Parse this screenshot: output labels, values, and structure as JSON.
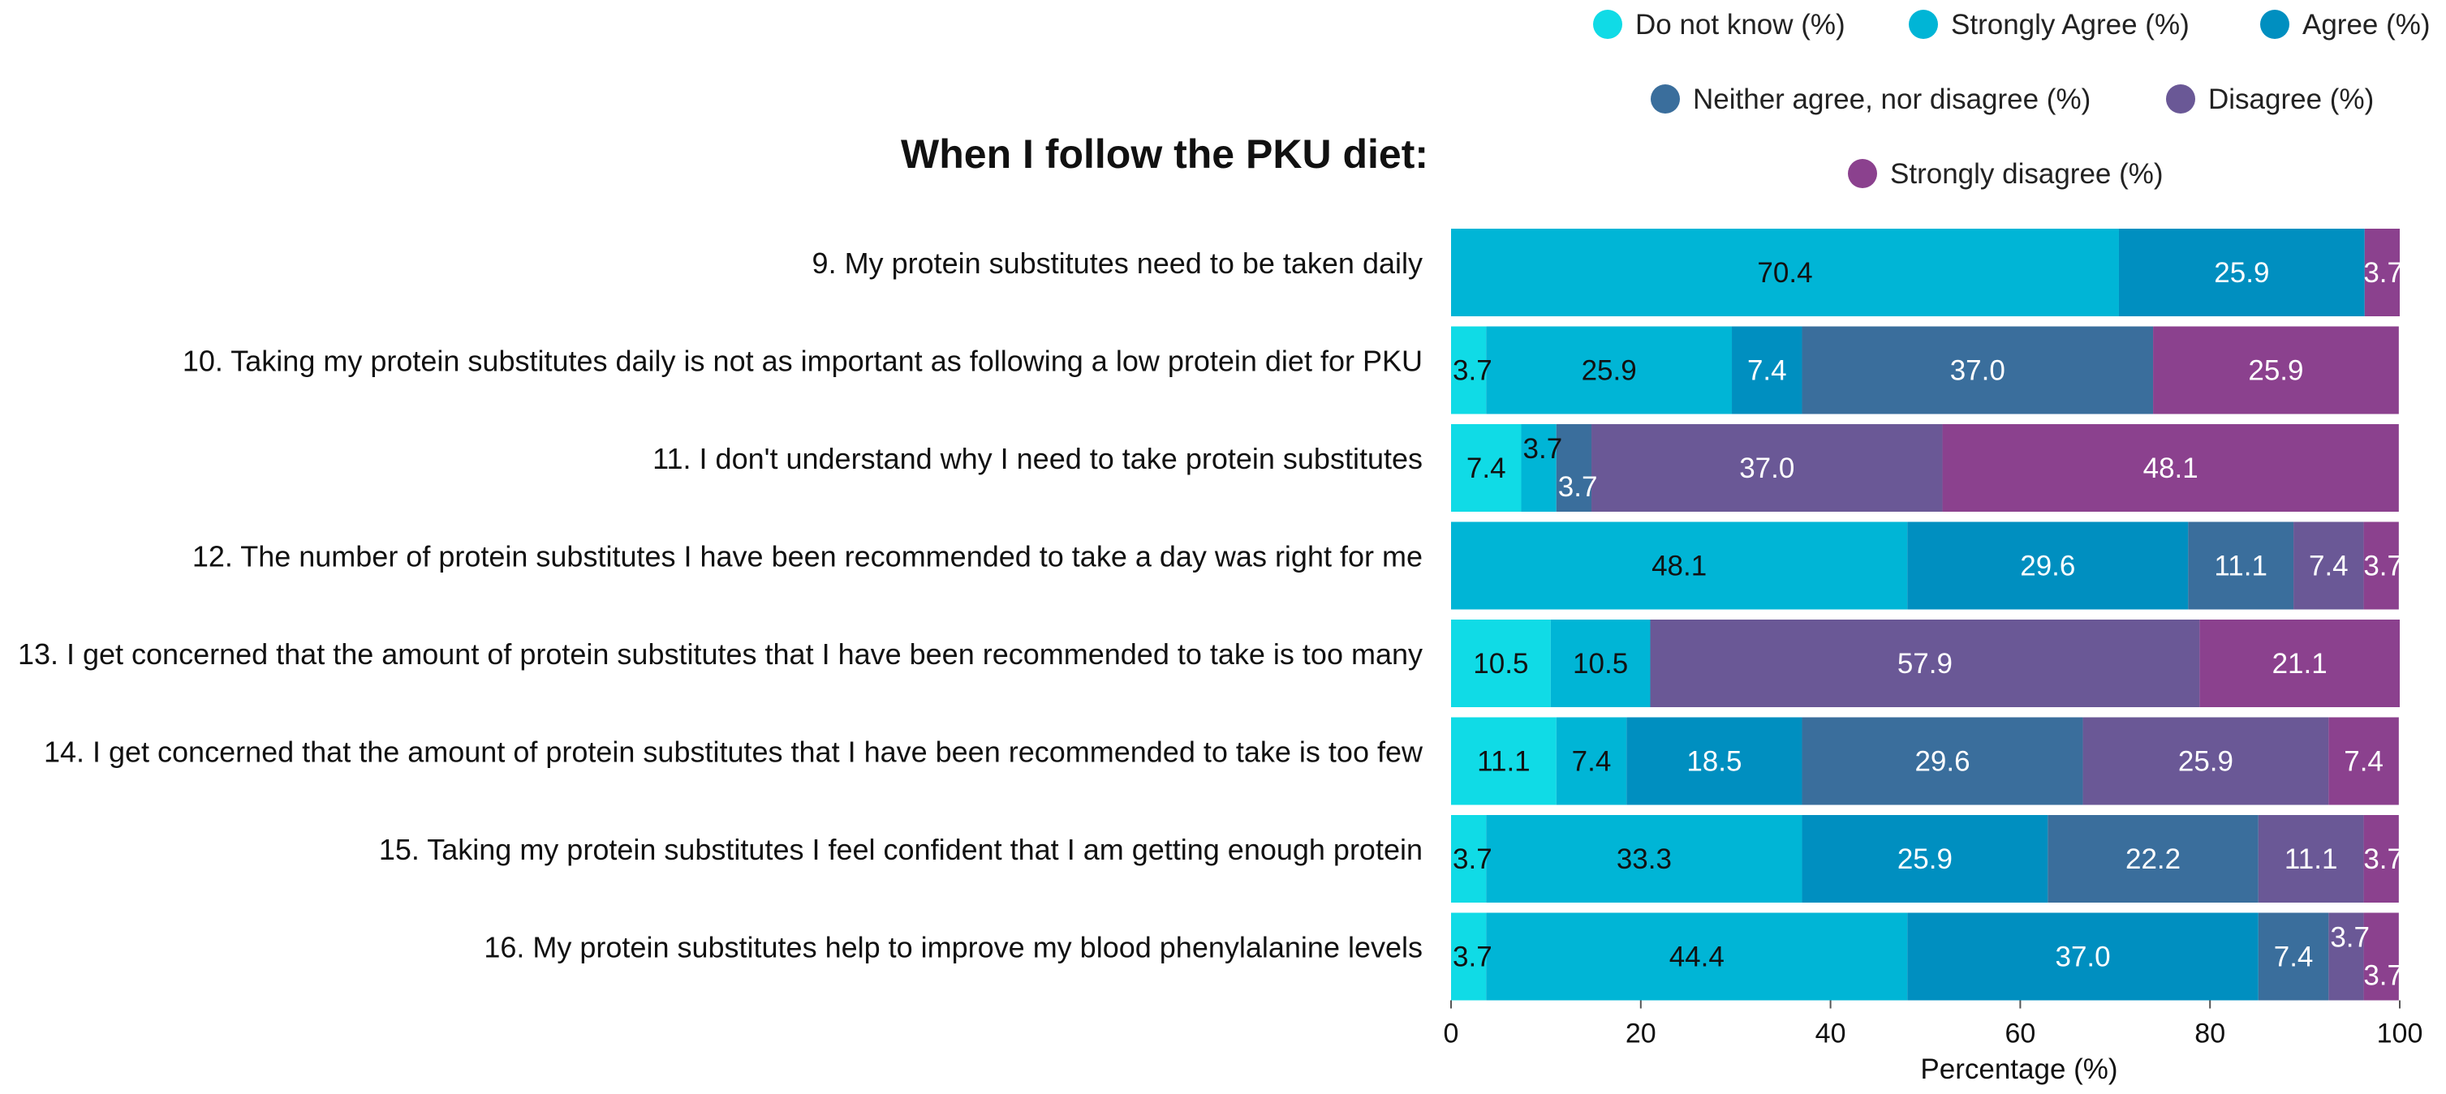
{
  "chart_data": {
    "type": "bar",
    "orientation": "horizontal",
    "stacked": true,
    "title": "When I follow the PKU diet:",
    "xlabel": "Percentage (%)",
    "ylabel": "",
    "xlim": [
      0,
      100
    ],
    "xticks": [
      0,
      20,
      40,
      60,
      80,
      100
    ],
    "grid": false,
    "legend_position": "top-right",
    "categories": [
      "9. My protein substitutes need to be taken daily",
      "10. Taking my protein substitutes daily is not as important as following a low protein diet for PKU",
      "11. I don't understand why I need to take protein substitutes",
      "12. The number of protein substitutes I have been recommended to take a day was right for me",
      "13. I get concerned that the amount of protein substitutes that I have been recommended to take is too many",
      "14. I get concerned that the amount of protein substitutes that I have been recommended to take is too few",
      "15. Taking my protein substitutes I feel confident that I am getting enough protein",
      "16. My protein substitutes help to improve my blood phenylalanine levels"
    ],
    "series": [
      {
        "name": "Do not know (%)",
        "color": "#10dbe6",
        "label_color": "#111111",
        "values": [
          0,
          3.7,
          7.4,
          0,
          10.5,
          11.1,
          3.7,
          3.7
        ]
      },
      {
        "name": "Strongly Agree (%)",
        "color": "#00b5d6",
        "label_color": "#111111",
        "values": [
          70.4,
          25.9,
          3.7,
          48.1,
          10.5,
          7.4,
          33.3,
          44.4
        ]
      },
      {
        "name": "Agree (%)",
        "color": "#008fc0",
        "label_color": "#ffffff",
        "values": [
          25.9,
          7.4,
          0,
          29.6,
          0,
          18.5,
          25.9,
          37.0
        ]
      },
      {
        "name": "Neither agree, nor disagree (%)",
        "color": "#3a6e9c",
        "label_color": "#ffffff",
        "values": [
          0,
          37.0,
          3.7,
          11.1,
          0,
          29.6,
          22.2,
          7.4
        ]
      },
      {
        "name": "Disagree (%)",
        "color": "#6a5896",
        "label_color": "#ffffff",
        "values": [
          0,
          0,
          37.0,
          7.4,
          57.9,
          25.9,
          11.1,
          3.7
        ]
      },
      {
        "name": "Strongly disagree (%)",
        "color": "#8b418e",
        "label_color": "#ffffff",
        "values": [
          3.7,
          25.9,
          48.1,
          3.7,
          21.1,
          7.4,
          3.7,
          3.7
        ]
      }
    ]
  }
}
